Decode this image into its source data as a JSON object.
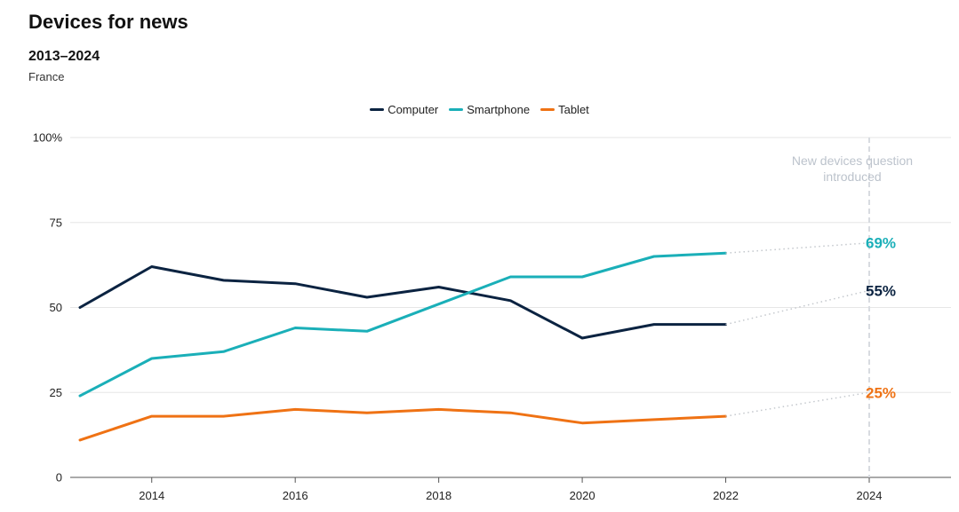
{
  "title": "Devices for news",
  "subtitle": "2013–2024",
  "region": "France",
  "colors": {
    "Computer": "#0b2341",
    "Smartphone": "#1aafb8",
    "Tablet": "#ef7214",
    "grid": "#e6e6e6",
    "dotted": "#c4c8cd",
    "annotation": "#bcc3cc"
  },
  "chart_data": {
    "type": "line",
    "title": "Devices for news",
    "subtitle": "2013–2024",
    "xlabel": "",
    "ylabel": "",
    "xlim": [
      2013,
      2024
    ],
    "ylim": [
      0,
      100
    ],
    "x_ticks": [
      2014,
      2016,
      2018,
      2020,
      2022,
      2024
    ],
    "y_ticks": [
      0,
      25,
      50,
      75,
      100
    ],
    "y_tick_labels": [
      "0",
      "25",
      "50",
      "75",
      "100%"
    ],
    "grid": true,
    "legend_position": "top-center",
    "series": [
      {
        "name": "Computer",
        "color": "#0b2341",
        "x": [
          2013,
          2014,
          2015,
          2016,
          2017,
          2018,
          2019,
          2020,
          2021,
          2022
        ],
        "values": [
          50,
          62,
          58,
          57,
          53,
          56,
          52,
          41,
          45,
          45
        ],
        "final": {
          "x": 2024,
          "value": 55,
          "label": "55%"
        }
      },
      {
        "name": "Smartphone",
        "color": "#1aafb8",
        "x": [
          2013,
          2014,
          2015,
          2016,
          2017,
          2018,
          2019,
          2020,
          2021,
          2022
        ],
        "values": [
          24,
          35,
          37,
          44,
          43,
          51,
          59,
          59,
          65,
          66
        ],
        "final": {
          "x": 2024,
          "value": 69,
          "label": "69%"
        }
      },
      {
        "name": "Tablet",
        "color": "#ef7214",
        "x": [
          2013,
          2014,
          2015,
          2016,
          2017,
          2018,
          2019,
          2020,
          2021,
          2022
        ],
        "values": [
          11,
          18,
          18,
          20,
          19,
          20,
          19,
          16,
          17,
          18
        ],
        "final": {
          "x": 2024,
          "value": 25,
          "label": "25%"
        }
      }
    ],
    "annotation": {
      "x": 2024,
      "text_lines": [
        "New devices question",
        "introduced"
      ]
    }
  }
}
